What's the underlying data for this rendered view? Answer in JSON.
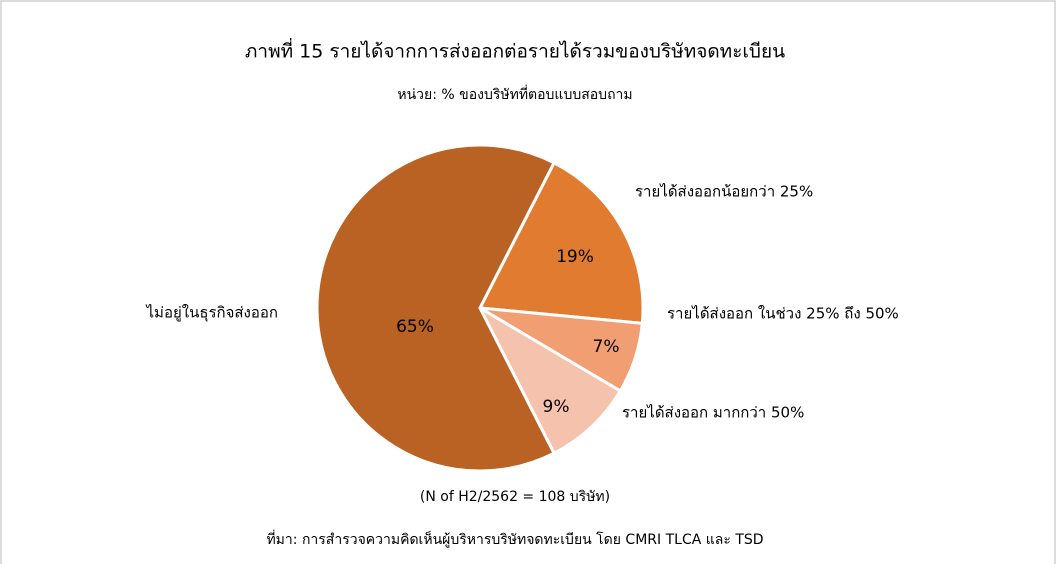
{
  "chart_data": {
    "type": "pie",
    "title": "ภาพที่ 15 รายได้จากการส่งออกต่อรายได้รวมของบริษัทจดทะเบียน",
    "subtitle": "หน่วย: % ของบริษัทที่ตอบแบบสอบถาม",
    "categories": [
      "รายได้ส่งออกน้อยกว่า 25%",
      "รายได้ส่งออก ในช่วง 25% ถึง  50%",
      "รายได้ส่งออก มากกว่า 50%",
      "ไม่อยู่ในธุรกิจส่งออก"
    ],
    "values": [
      19,
      7,
      9,
      65
    ],
    "value_labels": [
      "19%",
      "7%",
      "9%",
      "65%"
    ],
    "colors": [
      "#e07b30",
      "#f19e73",
      "#f5c2ae",
      "#b96224"
    ],
    "notes": [
      "(N of H2/2562 = 108 บริษัท)",
      "ที่มา: การสำรวจความคิดเห็นผู้บริหารบริษัทจดทะเบียน  โดย CMRI TLCA และ TSD"
    ]
  }
}
